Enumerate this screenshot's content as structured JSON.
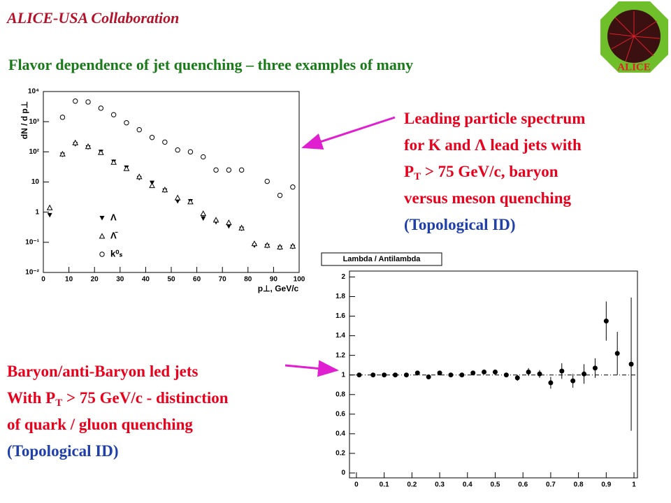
{
  "header": "ALICE-USA Collaboration",
  "title": "Flavor dependence of jet quenching – three examples of many",
  "logo_text": "ALICE",
  "annotations": [
    {
      "lines": [
        {
          "text": "Leading particle spectrum",
          "color": "#e8001c"
        },
        {
          "text": "for K and Λ lead jets with",
          "color": "#e8001c"
        },
        {
          "text": "P",
          "sub": "T",
          "tail": " > 75 GeV/c, baryon",
          "color": "#e8001c"
        },
        {
          "text": "versus meson quenching",
          "color": "#e8001c"
        },
        {
          "text": "(Topological ID)",
          "color": "#1f3faa"
        }
      ]
    },
    {
      "lines": [
        {
          "text": "Baryon/anti-Baryon led jets",
          "color": "#e8001c"
        },
        {
          "text": "With P",
          "sub": "T",
          "tail": " > 75 GeV/c  - distinction",
          "color": "#e8001c"
        },
        {
          "text": "of quark / gluon quenching",
          "color": "#e8001c"
        },
        {
          "text": "(Topological ID)",
          "color": "#1f3faa"
        }
      ]
    }
  ],
  "chart_data": [
    {
      "type": "scatter",
      "y_label": "dN / d p⊥",
      "x_label": "p⊥, GeV/c",
      "log_y": true,
      "legend": "lower-left",
      "xlim": [
        0,
        100
      ],
      "xticks": [
        0,
        10,
        20,
        30,
        40,
        50,
        60,
        70,
        80,
        90,
        100
      ],
      "ylim": [
        0.01,
        10000
      ],
      "yticks": [
        {
          "value": 0.01,
          "label": "10⁻²"
        },
        {
          "value": 0.1,
          "label": "10⁻¹"
        },
        1,
        10,
        {
          "value": 100,
          "label": "10²"
        },
        {
          "value": 1000,
          "label": "10³"
        },
        {
          "value": 10000,
          "label": "10⁴"
        }
      ],
      "series": [
        {
          "name": "Λ",
          "color": "#000000",
          "marker": "triangle-down-filled",
          "x": [
            2.5,
            7.5,
            12.5,
            17.5,
            22.5,
            27.5,
            32.5,
            37.5,
            42.5,
            47.5,
            52.5,
            57.5,
            62.5,
            67.5,
            72.5,
            77.5,
            82.5,
            87.5,
            92.5,
            97.5
          ],
          "values": [
            0.8,
            80,
            180,
            140,
            100,
            47,
            30,
            13.5,
            9.4,
            5.2,
            2.3,
            2.3,
            0.62,
            0.47,
            0.34,
            0.28,
            0.078,
            0.075,
            0.066,
            0.07
          ]
        },
        {
          "name": "Λ̄",
          "color": "#000000",
          "marker": "triangle-up-open",
          "x": [
            2.5,
            7.5,
            12.5,
            17.5,
            22.5,
            27.5,
            32.5,
            37.5,
            42.5,
            47.5,
            52.5,
            57.5,
            62.5,
            67.5,
            72.5,
            77.5,
            82.5,
            87.5,
            92.5,
            97.5
          ],
          "values": [
            1.4,
            85,
            200,
            150,
            95,
            45,
            28,
            15,
            7.6,
            5.5,
            3,
            2.2,
            0.9,
            0.55,
            0.45,
            0.3,
            0.09,
            0.08,
            0.07,
            0.075
          ]
        },
        {
          "name": "k⁰ₛ",
          "color": "#000000",
          "marker": "circle-open",
          "x": [
            7.5,
            12.5,
            17.5,
            22.5,
            27.5,
            32.5,
            37.5,
            42.5,
            47.5,
            52.5,
            57.5,
            62.5,
            67.5,
            72.5,
            77.5,
            87.5,
            92.5,
            97.5
          ],
          "values": [
            1400,
            4800,
            4500,
            2800,
            1700,
            920,
            540,
            300,
            210,
            115,
            100,
            68,
            25,
            25,
            25,
            10.5,
            3.6,
            6.8
          ]
        }
      ]
    },
    {
      "type": "scatter",
      "title": "Lambda / Antilambda",
      "reference_line": 1,
      "xlim": [
        -0.025,
        1.0125
      ],
      "xticks": [
        0,
        0.1,
        0.2,
        0.3,
        0.4,
        0.5,
        0.6,
        0.7,
        0.8,
        0.9,
        1
      ],
      "ylim": [
        -0.05,
        2.06
      ],
      "yticks": [
        0,
        0.2,
        0.4,
        0.6,
        0.8,
        1,
        1.2,
        1.4,
        1.6,
        1.8,
        2
      ],
      "series": [
        {
          "color": "#000000",
          "marker": "circle-filled",
          "x": [
            0.01,
            0.06,
            0.1,
            0.14,
            0.18,
            0.22,
            0.26,
            0.3,
            0.34,
            0.38,
            0.42,
            0.46,
            0.5,
            0.54,
            0.58,
            0.62,
            0.66,
            0.7,
            0.74,
            0.78,
            0.82,
            0.86,
            0.9,
            0.94,
            0.99
          ],
          "values": [
            1.0,
            1.0,
            1.0,
            1.0,
            1.0,
            1.02,
            0.98,
            1.02,
            1.0,
            1.0,
            1.02,
            1.03,
            1.03,
            1.0,
            0.97,
            1.03,
            1.01,
            0.92,
            1.04,
            0.94,
            1.01,
            1.07,
            1.55,
            1.22,
            1.11
          ],
          "errors": [
            0.01,
            0.01,
            0.01,
            0.01,
            0.01,
            0.01,
            0.01,
            0.01,
            0.01,
            0.01,
            0.015,
            0.02,
            0.02,
            0.02,
            0.03,
            0.04,
            0.04,
            0.06,
            0.08,
            0.07,
            0.1,
            0.1,
            0.2,
            0.22,
            0.68
          ]
        }
      ]
    }
  ]
}
